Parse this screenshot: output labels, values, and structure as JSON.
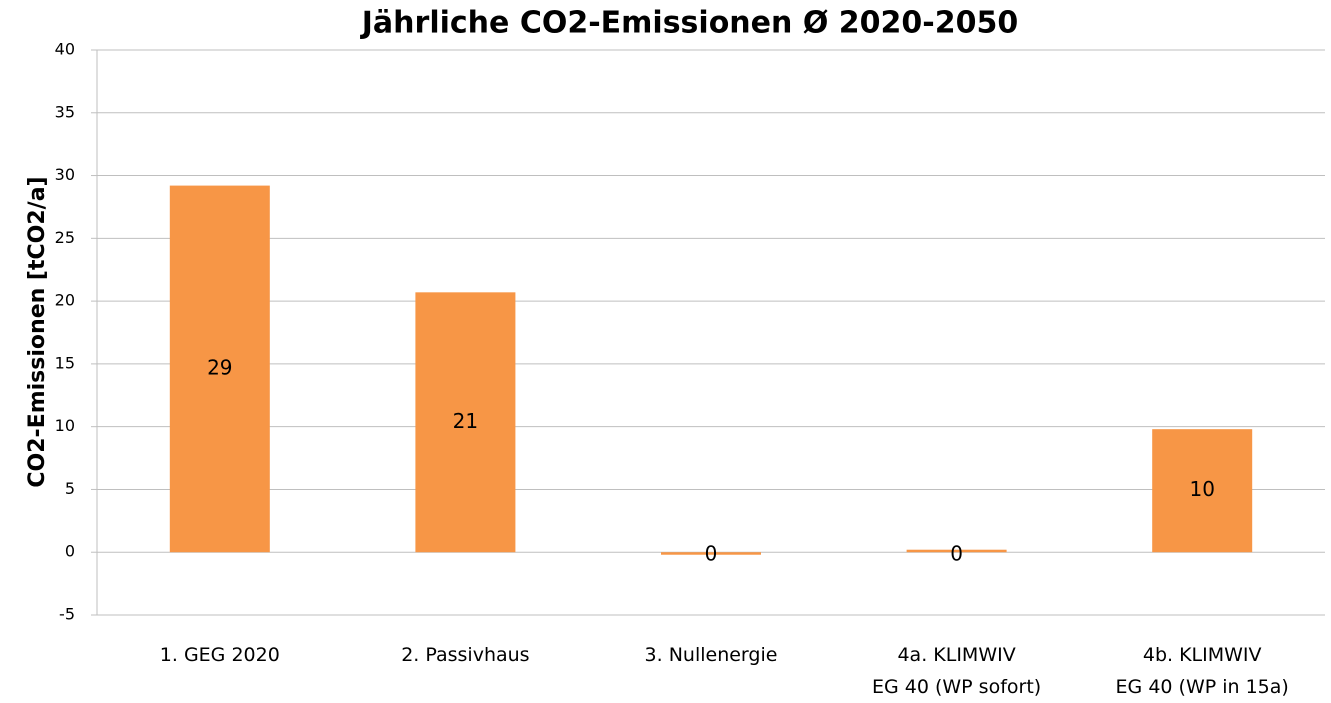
{
  "chart_data": {
    "type": "bar",
    "title": "Jährliche CO2-Emissionen Ø 2020-2050",
    "y_label": "CO2-Emissionen [tCO2/a]",
    "categories": [
      [
        "1. GEG 2020"
      ],
      [
        "2. Passivhaus"
      ],
      [
        "3. Nullenergie"
      ],
      [
        "4a. KLIMWIV",
        "EG 40 (WP sofort)"
      ],
      [
        "4b. KLIMWIV",
        "EG 40 (WP in 15a)"
      ]
    ],
    "values": [
      29.2,
      20.7,
      -0.2,
      0.2,
      9.8
    ],
    "value_labels": [
      "29",
      "21",
      "0",
      "0",
      "10"
    ],
    "color": "#f79646",
    "ylim": [
      -5,
      40
    ],
    "yticks": [
      -5,
      0,
      5,
      10,
      15,
      20,
      25,
      30,
      35,
      40
    ],
    "grid": true
  }
}
